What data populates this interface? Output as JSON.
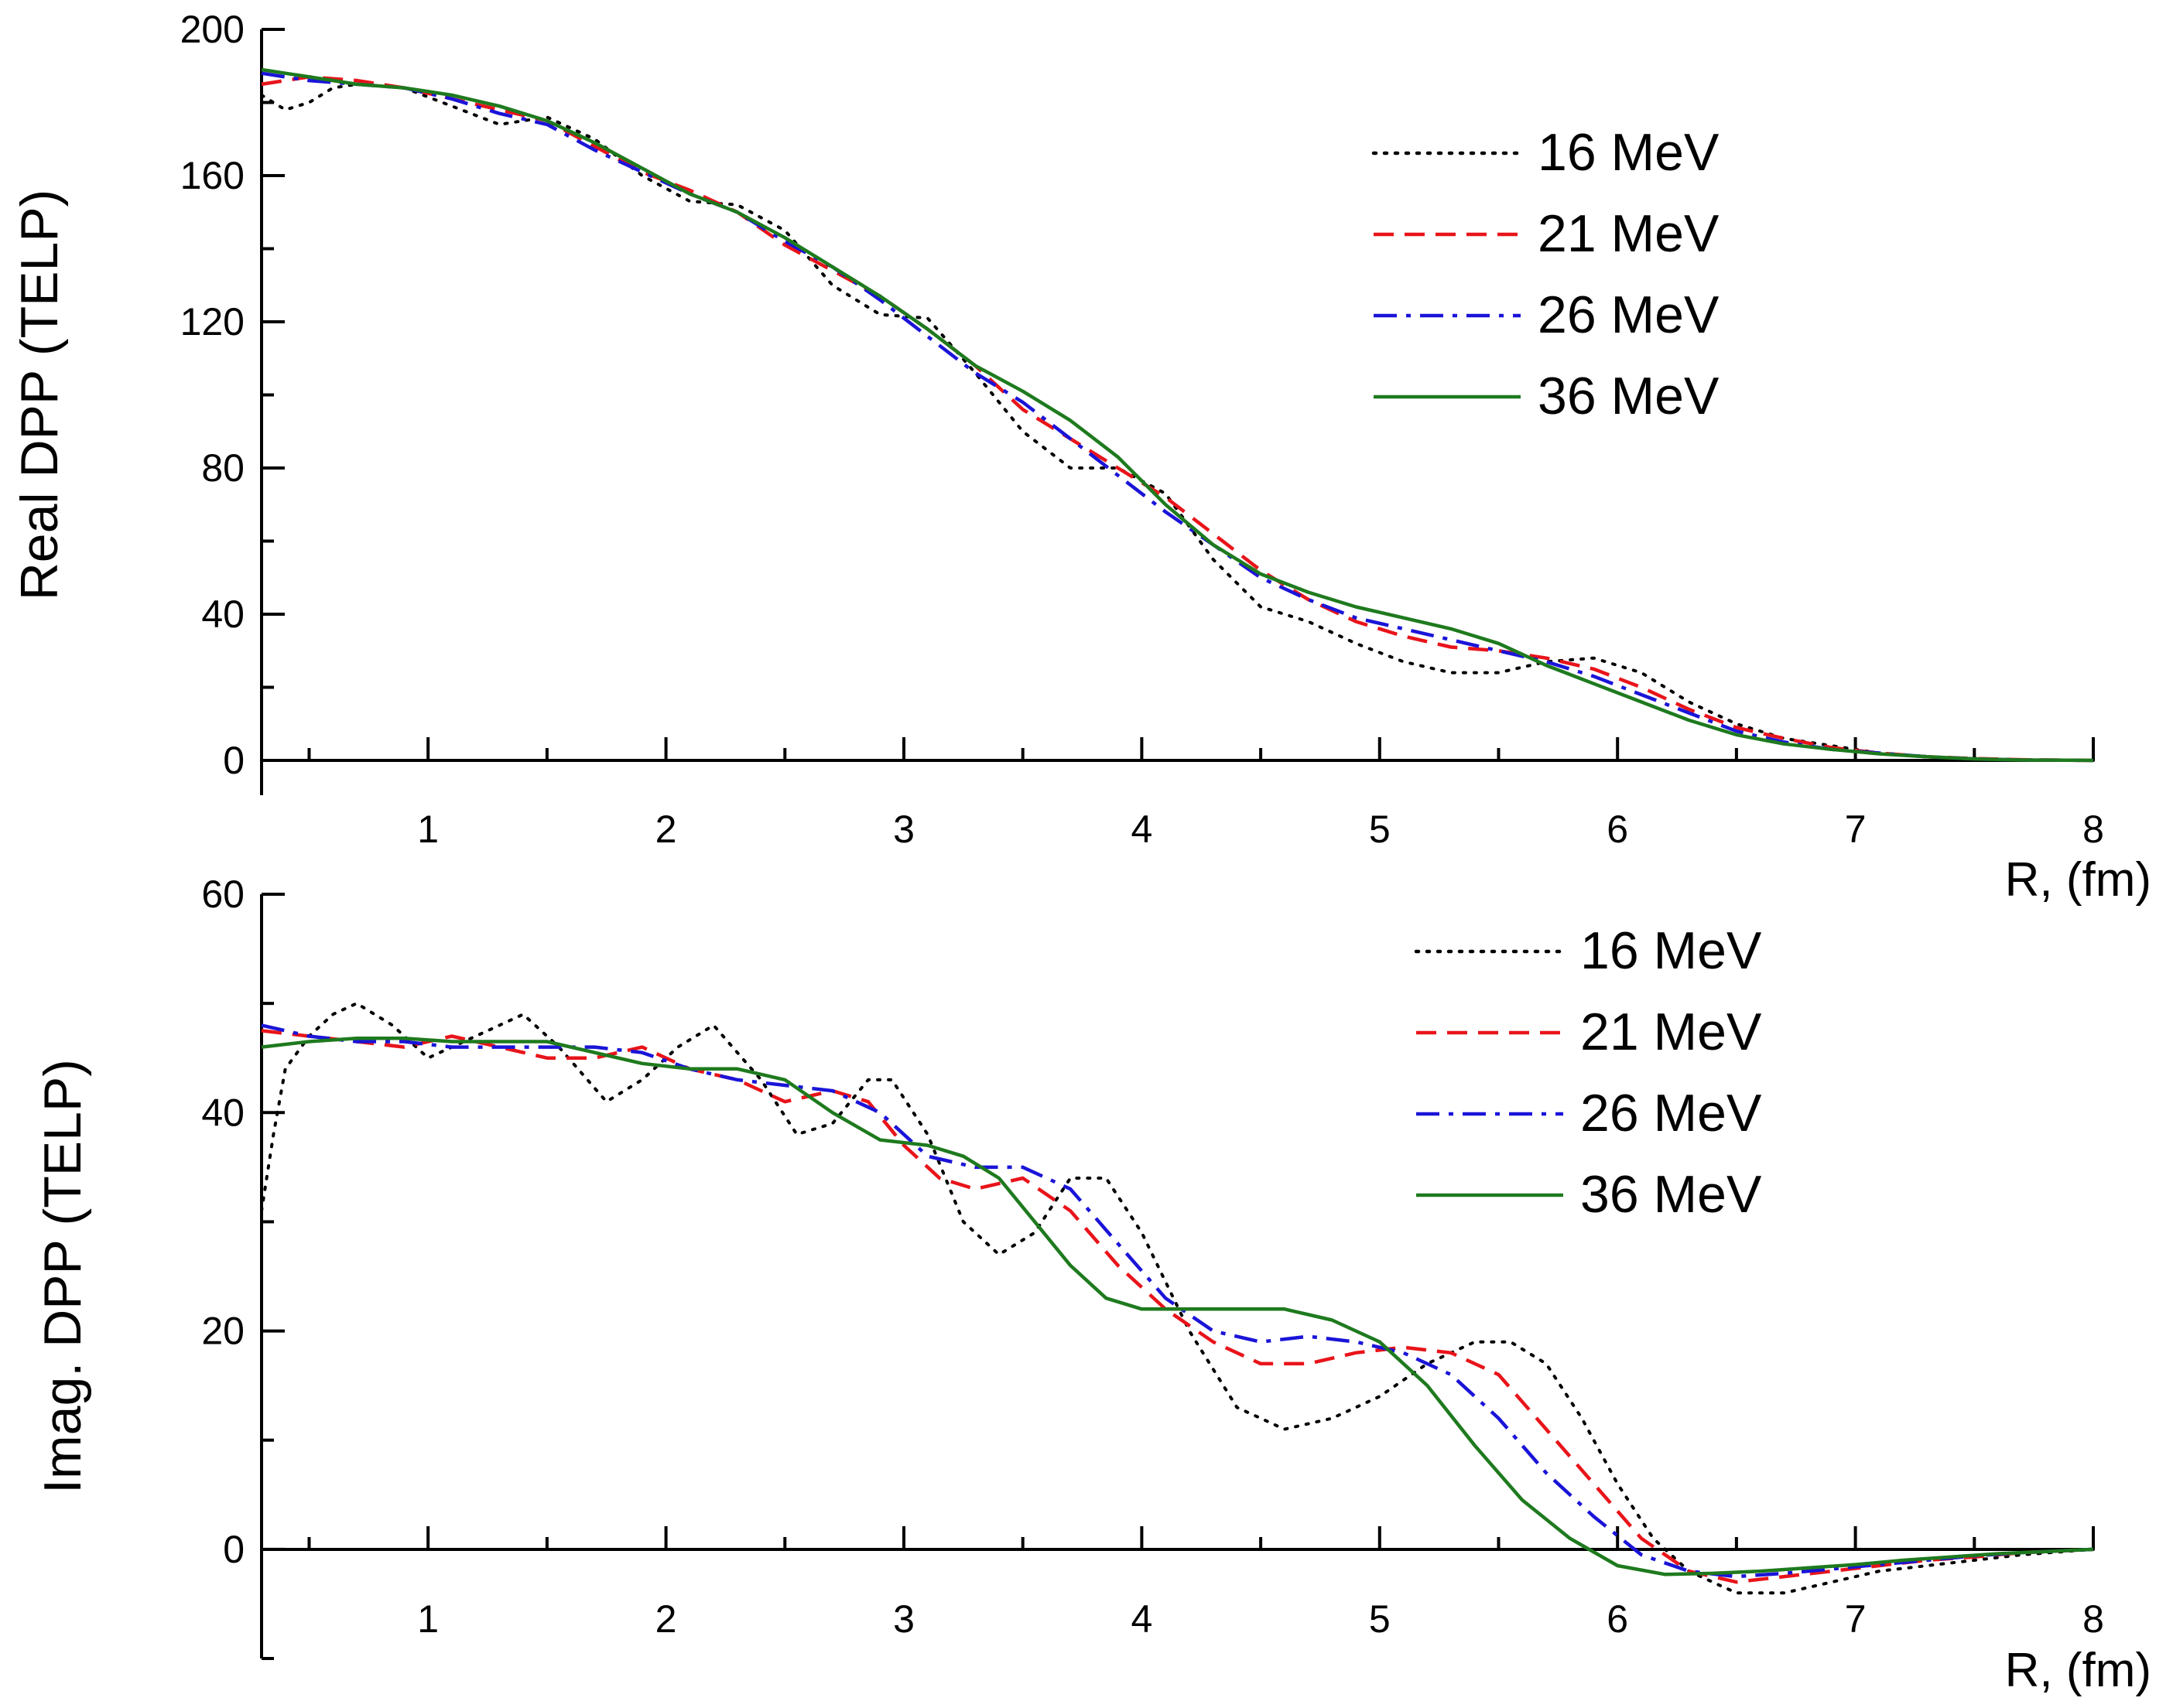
{
  "chart_data": [
    {
      "type": "line",
      "title": "",
      "xlabel": "R, (fm)",
      "ylabel": "Real DPP (TELP)",
      "xlim": [
        0.3,
        8.0
      ],
      "ylim": [
        0,
        200
      ],
      "xticks": [
        1,
        2,
        3,
        4,
        5,
        6,
        7,
        8
      ],
      "xtick_labels": [
        "1",
        "2",
        "3",
        "4",
        "5",
        "6",
        "7",
        "8"
      ],
      "yticks": [
        0,
        40,
        80,
        120,
        160,
        200
      ],
      "ytick_labels": [
        "0",
        "40",
        "80",
        "120",
        "160",
        "200"
      ],
      "grid": false,
      "legend_position": "top-right",
      "series": [
        {
          "name": "16 MeV",
          "color": "#000000",
          "style": "dotted",
          "x": [
            0.3,
            0.4,
            0.5,
            0.6,
            0.7,
            0.9,
            1.1,
            1.3,
            1.5,
            1.7,
            1.9,
            2.1,
            2.3,
            2.5,
            2.7,
            2.9,
            3.1,
            3.3,
            3.5,
            3.7,
            3.9,
            4.1,
            4.3,
            4.5,
            4.7,
            4.9,
            5.1,
            5.3,
            5.5,
            5.7,
            5.9,
            6.1,
            6.3,
            6.5,
            6.7,
            6.9,
            7.1,
            7.3,
            7.5,
            7.7,
            8.0
          ],
          "y": [
            182,
            178,
            180,
            184,
            185,
            184,
            179,
            174,
            176,
            170,
            160,
            153,
            152,
            145,
            130,
            122,
            121,
            106,
            90,
            80,
            80,
            73,
            55,
            42,
            38,
            32,
            27,
            24,
            24,
            27,
            28,
            24,
            16,
            10,
            6,
            4,
            2,
            1,
            0.5,
            0.2,
            0
          ]
        },
        {
          "name": "21 MeV",
          "color": "#e8141a",
          "style": "dashed",
          "x": [
            0.3,
            0.4,
            0.5,
            0.7,
            0.9,
            1.1,
            1.3,
            1.5,
            1.7,
            1.9,
            2.1,
            2.3,
            2.5,
            2.7,
            2.9,
            3.1,
            3.3,
            3.5,
            3.7,
            3.9,
            4.1,
            4.3,
            4.5,
            4.7,
            4.9,
            5.1,
            5.3,
            5.5,
            5.7,
            5.9,
            6.1,
            6.3,
            6.5,
            6.7,
            6.9,
            7.1,
            7.3,
            7.5,
            7.7,
            8.0
          ],
          "y": [
            185,
            186,
            187,
            186,
            184,
            181,
            178,
            175,
            168,
            161,
            156,
            150,
            141,
            134,
            127,
            118,
            108,
            96,
            88,
            80,
            72,
            62,
            52,
            44,
            38,
            34,
            31,
            30,
            28,
            25,
            20,
            14,
            9,
            6,
            3.5,
            2,
            1,
            0.5,
            0.2,
            0
          ]
        },
        {
          "name": "26 MeV",
          "color": "#1a14d8",
          "style": "dashdot",
          "x": [
            0.3,
            0.4,
            0.5,
            0.7,
            0.9,
            1.1,
            1.3,
            1.5,
            1.7,
            1.9,
            2.1,
            2.3,
            2.5,
            2.7,
            2.9,
            3.1,
            3.3,
            3.5,
            3.7,
            3.9,
            4.1,
            4.3,
            4.5,
            4.7,
            4.9,
            5.1,
            5.3,
            5.5,
            5.7,
            5.9,
            6.1,
            6.3,
            6.5,
            6.7,
            6.9,
            7.1,
            7.3,
            7.5,
            7.7,
            8.0
          ],
          "y": [
            188,
            187,
            186,
            185,
            184,
            181,
            177,
            174,
            167,
            161,
            155,
            150,
            142,
            135,
            126,
            116,
            106,
            98,
            88,
            78,
            68,
            59,
            50,
            44,
            39,
            36,
            33,
            30,
            27,
            23,
            18,
            13,
            8,
            5,
            3,
            2,
            1,
            0.4,
            0.1,
            0
          ]
        },
        {
          "name": "36 MeV",
          "color": "#1e7a1e",
          "style": "solid",
          "x": [
            0.3,
            0.5,
            0.7,
            0.9,
            1.1,
            1.3,
            1.5,
            1.7,
            1.9,
            2.1,
            2.3,
            2.5,
            2.7,
            2.9,
            3.1,
            3.3,
            3.5,
            3.7,
            3.9,
            4.1,
            4.3,
            4.5,
            4.7,
            4.9,
            5.1,
            5.3,
            5.5,
            5.7,
            5.9,
            6.1,
            6.3,
            6.5,
            6.7,
            6.9,
            7.1,
            7.3,
            7.5,
            7.7,
            8.0
          ],
          "y": [
            189,
            187,
            185,
            184,
            182,
            179,
            175,
            169,
            162,
            155,
            150,
            143,
            135,
            127,
            118,
            108,
            101,
            93,
            83,
            70,
            59,
            51,
            46,
            42,
            39,
            36,
            32,
            26,
            21,
            16,
            11,
            7,
            4.5,
            3,
            1.8,
            1,
            0.4,
            0.1,
            0
          ]
        }
      ]
    },
    {
      "type": "line",
      "title": "",
      "xlabel": "R, (fm)",
      "ylabel": "Imag. DPP (TELP)",
      "xlim": [
        0.3,
        8.0
      ],
      "ylim": [
        -10,
        60
      ],
      "xticks": [
        1,
        2,
        3,
        4,
        5,
        6,
        7,
        8
      ],
      "xtick_labels": [
        "1",
        "2",
        "3",
        "4",
        "5",
        "6",
        "7",
        "8"
      ],
      "yticks": [
        0,
        20,
        40,
        60
      ],
      "ytick_labels": [
        "0",
        "20",
        "40",
        "60"
      ],
      "grid": false,
      "legend_position": "top-right",
      "series": [
        {
          "name": "16 MeV",
          "color": "#000000",
          "style": "dotted",
          "x": [
            0.3,
            0.35,
            0.4,
            0.5,
            0.6,
            0.7,
            0.85,
            1.0,
            1.2,
            1.4,
            1.55,
            1.75,
            1.9,
            2.05,
            2.2,
            2.4,
            2.55,
            2.7,
            2.85,
            2.95,
            3.1,
            3.25,
            3.4,
            3.55,
            3.7,
            3.85,
            4.0,
            4.2,
            4.4,
            4.6,
            4.8,
            5.0,
            5.2,
            5.4,
            5.55,
            5.7,
            5.85,
            6.0,
            6.15,
            6.3,
            6.5,
            6.7,
            6.9,
            7.1,
            7.3,
            7.5,
            7.7,
            8.0
          ],
          "y": [
            31,
            38,
            44,
            47,
            49,
            50,
            48,
            45,
            47,
            49,
            46,
            41,
            43,
            46,
            48,
            43,
            38,
            39,
            43,
            43,
            38,
            30,
            27,
            29,
            34,
            34,
            29,
            20,
            13,
            11,
            12,
            14,
            17,
            19,
            19,
            17,
            12,
            6,
            1,
            -2,
            -4,
            -4,
            -3,
            -2,
            -1.5,
            -1,
            -0.5,
            0
          ]
        },
        {
          "name": "21 MeV",
          "color": "#e8141a",
          "style": "dashed",
          "x": [
            0.3,
            0.5,
            0.7,
            0.9,
            1.1,
            1.3,
            1.5,
            1.7,
            1.9,
            2.1,
            2.3,
            2.5,
            2.7,
            2.85,
            3.0,
            3.15,
            3.3,
            3.5,
            3.7,
            3.9,
            4.1,
            4.3,
            4.5,
            4.7,
            4.9,
            5.1,
            5.3,
            5.5,
            5.7,
            5.9,
            6.1,
            6.3,
            6.5,
            6.7,
            6.9,
            7.1,
            7.3,
            7.5,
            7.7,
            8.0
          ],
          "y": [
            47.5,
            47,
            46.5,
            46,
            47,
            46,
            45,
            45,
            46,
            44,
            43,
            41,
            42,
            41,
            37,
            34,
            33,
            34,
            31,
            26,
            22,
            19,
            17,
            17,
            18,
            18.5,
            18,
            16,
            11,
            6,
            1,
            -2,
            -3,
            -2.5,
            -2,
            -1.5,
            -1,
            -0.7,
            -0.3,
            0
          ]
        },
        {
          "name": "26 MeV",
          "color": "#1a14d8",
          "style": "dashdot",
          "x": [
            0.3,
            0.5,
            0.7,
            0.9,
            1.1,
            1.3,
            1.5,
            1.7,
            1.9,
            2.1,
            2.3,
            2.5,
            2.7,
            2.9,
            3.1,
            3.3,
            3.5,
            3.7,
            3.9,
            4.1,
            4.3,
            4.5,
            4.7,
            4.9,
            5.1,
            5.3,
            5.5,
            5.7,
            5.9,
            6.1,
            6.3,
            6.5,
            6.7,
            6.9,
            7.1,
            7.3,
            7.5,
            7.7,
            8.0
          ],
          "y": [
            48,
            47,
            46.5,
            46.5,
            46,
            46,
            46,
            46,
            45.5,
            44,
            43,
            42.5,
            42,
            40,
            36,
            35,
            35,
            33,
            28,
            23,
            20,
            19,
            19.5,
            19,
            18,
            16,
            12,
            7,
            3,
            -0.5,
            -2,
            -2.5,
            -2.2,
            -1.8,
            -1.4,
            -1,
            -0.6,
            -0.3,
            0
          ]
        },
        {
          "name": "36 MeV",
          "color": "#1e7a1e",
          "style": "solid",
          "x": [
            0.3,
            0.5,
            0.7,
            0.9,
            1.1,
            1.3,
            1.5,
            1.7,
            1.9,
            2.1,
            2.3,
            2.5,
            2.7,
            2.9,
            3.1,
            3.25,
            3.4,
            3.55,
            3.7,
            3.85,
            4.0,
            4.2,
            4.4,
            4.6,
            4.8,
            5.0,
            5.2,
            5.4,
            5.6,
            5.8,
            6.0,
            6.2,
            6.4,
            6.6,
            6.8,
            7.0,
            7.2,
            7.4,
            7.6,
            7.8,
            8.0
          ],
          "y": [
            46,
            46.5,
            46.8,
            46.8,
            46.5,
            46.5,
            46.5,
            45.5,
            44.5,
            44,
            44,
            43,
            40,
            37.5,
            37,
            36,
            34,
            30,
            26,
            23,
            22,
            22,
            22,
            22,
            21,
            19,
            15,
            9.5,
            4.5,
            1,
            -1.5,
            -2.3,
            -2.2,
            -2,
            -1.7,
            -1.4,
            -1,
            -0.7,
            -0.4,
            -0.2,
            0
          ]
        }
      ]
    }
  ]
}
